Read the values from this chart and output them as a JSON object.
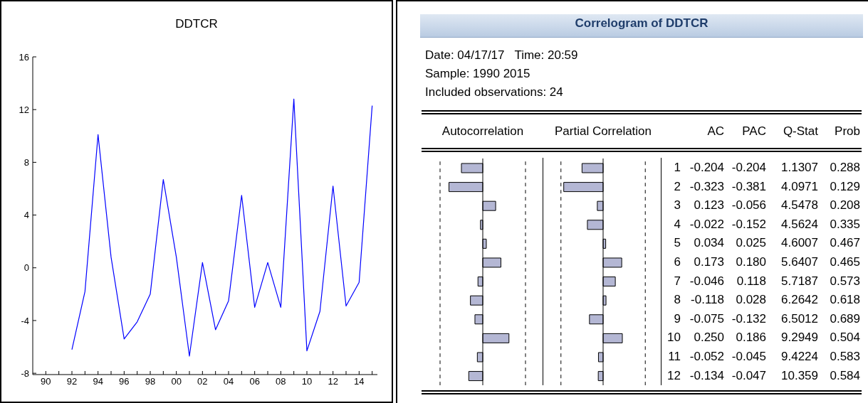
{
  "chart_data": [
    {
      "type": "line",
      "title": "DDTCR",
      "x": [
        1992,
        1993,
        1994,
        1995,
        1996,
        1997,
        1998,
        1999,
        2000,
        2001,
        2002,
        2003,
        2004,
        2005,
        2006,
        2007,
        2008,
        2009,
        2010,
        2011,
        2012,
        2013,
        2014,
        2015
      ],
      "series": [
        {
          "color": "#0000ff",
          "values": [
            -6.2,
            -1.8,
            10.1,
            0.8,
            -5.4,
            -4.1,
            -2.0,
            6.7,
            0.8,
            -6.7,
            0.4,
            -4.7,
            -2.5,
            5.5,
            -3.0,
            0.4,
            -3.0,
            12.8,
            -6.3,
            -3.3,
            6.2,
            -2.9,
            -1.1,
            12.3
          ]
        }
      ],
      "xlim": [
        1989,
        2015.4
      ],
      "xticks": [
        {
          "value": 1990,
          "label": "90"
        },
        {
          "value": 1991,
          "label": null
        },
        {
          "value": 1992,
          "label": "92"
        },
        {
          "value": 1993,
          "label": null
        },
        {
          "value": 1994,
          "label": "94"
        },
        {
          "value": 1995,
          "label": null
        },
        {
          "value": 1996,
          "label": "96"
        },
        {
          "value": 1997,
          "label": null
        },
        {
          "value": 1998,
          "label": "98"
        },
        {
          "value": 1999,
          "label": null
        },
        {
          "value": 2000,
          "label": "00"
        },
        {
          "value": 2001,
          "label": null
        },
        {
          "value": 2002,
          "label": "02"
        },
        {
          "value": 2003,
          "label": null
        },
        {
          "value": 2004,
          "label": "04"
        },
        {
          "value": 2005,
          "label": null
        },
        {
          "value": 2006,
          "label": "06"
        },
        {
          "value": 2007,
          "label": null
        },
        {
          "value": 2008,
          "label": "08"
        },
        {
          "value": 2009,
          "label": null
        },
        {
          "value": 2010,
          "label": "10"
        },
        {
          "value": 2011,
          "label": null
        },
        {
          "value": 2012,
          "label": "12"
        },
        {
          "value": 2013,
          "label": null
        },
        {
          "value": 2014,
          "label": "14"
        },
        {
          "value": 2015,
          "label": null
        }
      ],
      "ylim": [
        -8.1,
        16
      ],
      "yticks": [
        -8,
        -4,
        0,
        4,
        8,
        12,
        16
      ],
      "grid": false,
      "legend": false,
      "marker": "none",
      "line_style": "solid"
    },
    {
      "type": "bar",
      "orientation": "horizontal",
      "title": "Correlogram of DDTCR",
      "annotations": [
        "Date: 04/17/17   Time: 20:59",
        "Sample: 1990 2015",
        "Included observations: 24"
      ],
      "xlabel": "Autocorrelation",
      "categories": [
        "1",
        "2",
        "3",
        "4",
        "5",
        "6",
        "7",
        "8",
        "9",
        "10",
        "11",
        "12"
      ],
      "series": [
        {
          "name": "AC",
          "color": "#b4b7d4",
          "values": [
            -0.204,
            -0.323,
            0.123,
            -0.022,
            0.034,
            0.173,
            -0.046,
            -0.118,
            -0.075,
            0.25,
            -0.052,
            -0.134
          ],
          "value_labels": [
            "-0.204",
            "-0.323",
            "0.123",
            "-0.022",
            "0.034",
            "0.173",
            "-0.046",
            "-0.118",
            "-0.075",
            "0.250",
            "-0.052",
            "-0.134"
          ]
        }
      ],
      "ref_lines": [
        {
          "axis": "x",
          "value": -0.408,
          "line_style": "dashed",
          "color": "#000000"
        },
        {
          "axis": "x",
          "value": 0.408,
          "line_style": "dashed",
          "color": "#000000"
        }
      ]
    },
    {
      "type": "bar",
      "orientation": "horizontal",
      "xlabel": "Partial Correlation",
      "categories": [
        null,
        null,
        null,
        null,
        null,
        null,
        null,
        null,
        null,
        null,
        null,
        null
      ],
      "series": [
        {
          "name": "PAC",
          "color": "#b4b7d4",
          "values": [
            -0.204,
            -0.381,
            -0.056,
            -0.152,
            0.025,
            0.18,
            0.118,
            0.028,
            -0.132,
            0.186,
            -0.045,
            -0.047
          ],
          "value_labels": [
            "-0.204",
            "-0.381",
            "-0.056",
            "-0.152",
            "0.025",
            "0.180",
            "0.118",
            "0.028",
            "-0.132",
            "0.186",
            "-0.045",
            "-0.047"
          ]
        }
      ],
      "ref_lines": [
        {
          "axis": "x",
          "value": -0.408,
          "line_style": "dashed",
          "color": "#000000"
        },
        {
          "axis": "x",
          "value": 0.408,
          "line_style": "dashed",
          "color": "#000000"
        }
      ]
    },
    {
      "type": "other",
      "title": "Q-Stat",
      "data_labels": true,
      "values": [
        1.1307,
        4.0971,
        4.5478,
        4.5624,
        4.6007,
        5.6407,
        5.7187,
        6.2642,
        6.5012,
        9.2949,
        9.4224,
        10.359
      ]
    },
    {
      "type": "other",
      "title": "Prob",
      "data_labels": true,
      "values": [
        0.288,
        0.129,
        0.208,
        0.335,
        0.467,
        0.465,
        0.573,
        0.618,
        0.689,
        0.504,
        0.583,
        0.584
      ]
    }
  ]
}
